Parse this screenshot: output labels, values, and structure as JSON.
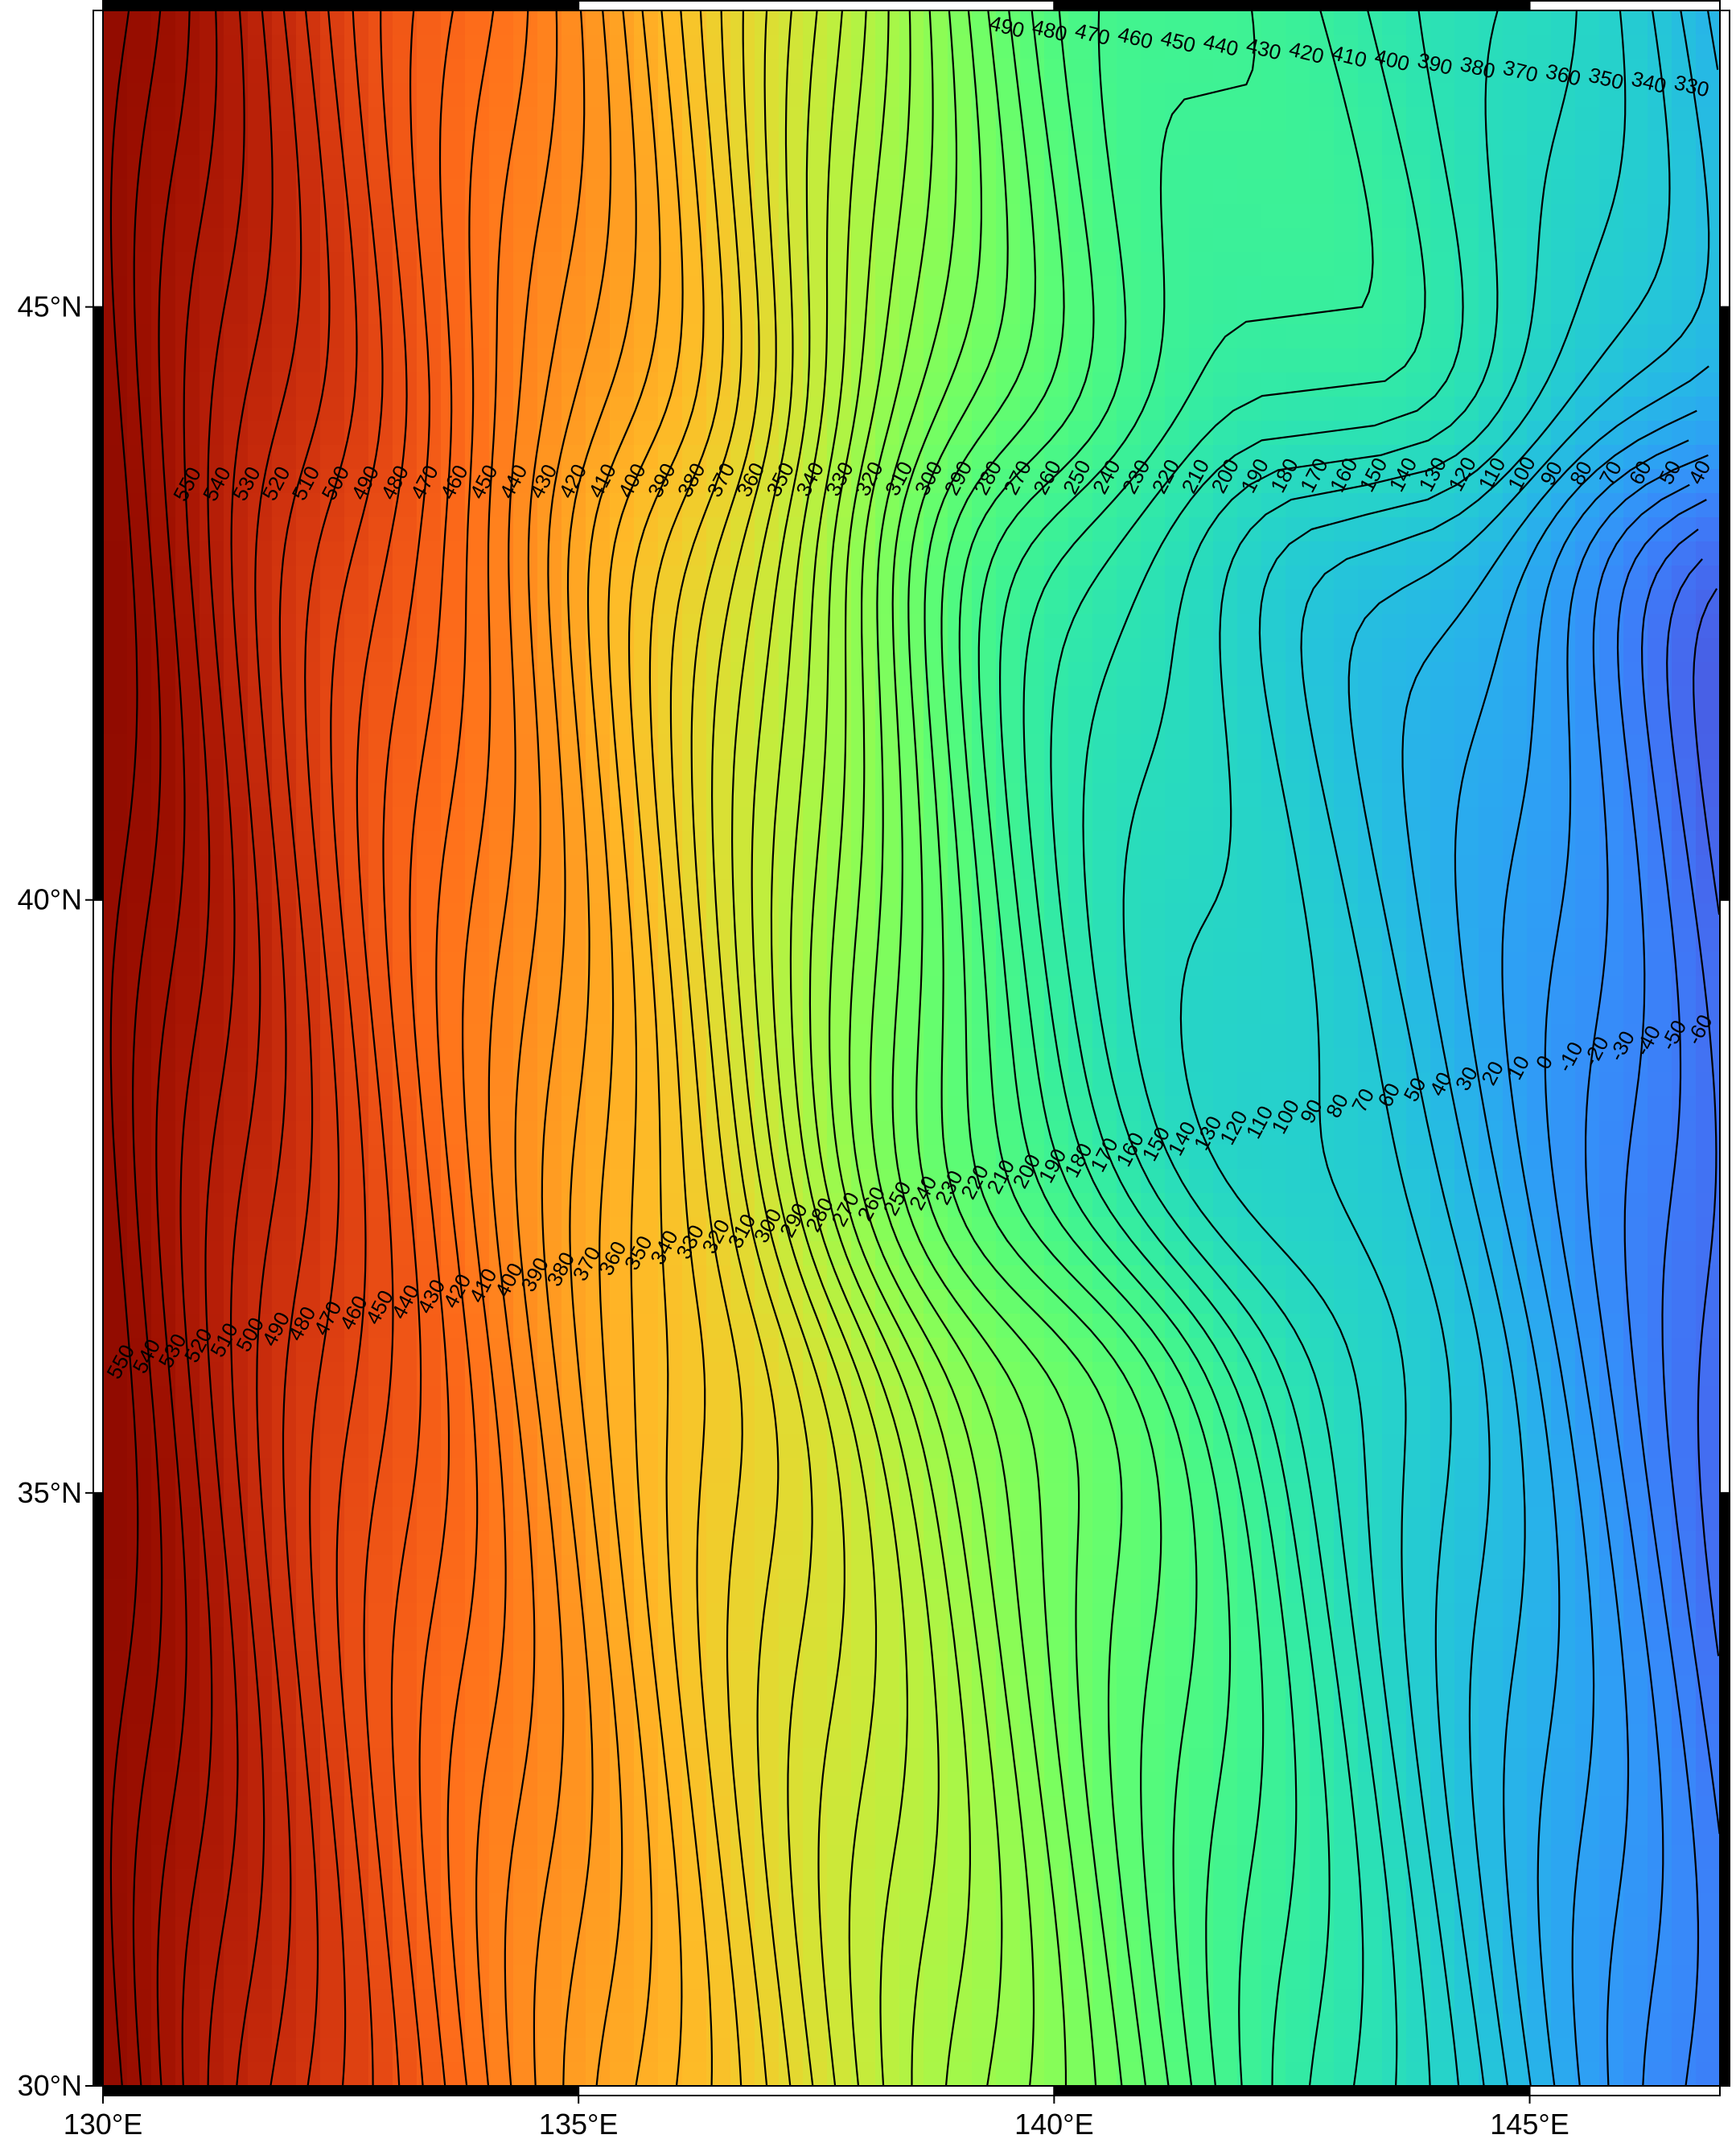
{
  "map": {
    "projection": "cartesian lon/lat",
    "region": {
      "lon_min": 130,
      "lon_max": 147,
      "lat_min": 30,
      "lat_max": 47.5
    },
    "frame_style": "GMT fancy (alternating black/white)",
    "colormap": "turbo",
    "contour_interval": 10,
    "value_range": [
      -70,
      600
    ]
  },
  "axes": {
    "x_ticks": [
      {
        "value": 130,
        "label": "130°E"
      },
      {
        "value": 135,
        "label": "135°E"
      },
      {
        "value": 140,
        "label": "140°E"
      },
      {
        "value": 145,
        "label": "145°E"
      }
    ],
    "y_ticks": [
      {
        "value": 30,
        "label": "30°N"
      },
      {
        "value": 35,
        "label": "35°N"
      },
      {
        "value": 40,
        "label": "40°N"
      },
      {
        "value": 45,
        "label": "45°N"
      }
    ]
  },
  "contour_label_rows": {
    "top_edge": [
      "490",
      "480",
      "470",
      "460",
      "450",
      "440",
      "430",
      "420",
      "410",
      "400",
      "390",
      "380",
      "370",
      "360",
      "350",
      "340",
      "330"
    ],
    "upper_band": [
      "550",
      "540",
      "530",
      "520",
      "510",
      "500",
      "490",
      "480",
      "470",
      "460",
      "450",
      "440",
      "430",
      "420",
      "410",
      "400",
      "390",
      "380",
      "370",
      "360",
      "350",
      "340",
      "330",
      "320",
      "310",
      "300",
      "290",
      "280",
      "270",
      "260",
      "250",
      "240",
      "230",
      "220",
      "210",
      "200",
      "190",
      "180",
      "170",
      "160",
      "150",
      "140",
      "130",
      "120",
      "110",
      "100",
      "90",
      "80",
      "70",
      "60",
      "50",
      "40"
    ],
    "lower_band": [
      "550",
      "540",
      "530",
      "520",
      "510",
      "500",
      "490",
      "480",
      "470",
      "460",
      "450",
      "440",
      "430",
      "420",
      "410",
      "400",
      "390",
      "380",
      "370",
      "360",
      "350",
      "340",
      "330",
      "320",
      "310",
      "300",
      "290",
      "280",
      "270",
      "260",
      "250",
      "240",
      "230",
      "220",
      "210",
      "200",
      "190",
      "180",
      "170",
      "160",
      "150",
      "140",
      "130",
      "120",
      "110",
      "100",
      "90",
      "80",
      "70",
      "60",
      "50",
      "40",
      "30",
      "20",
      "10",
      "0",
      "-10",
      "-20",
      "-30",
      "-40",
      "-50",
      "-60"
    ]
  }
}
